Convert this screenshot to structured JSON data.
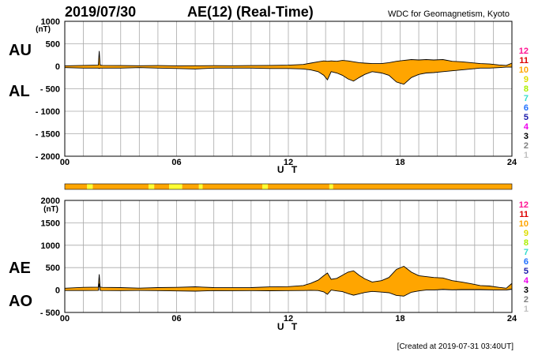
{
  "header": {
    "date": "2019/07/30",
    "title": "AE(12) (Real-Time)",
    "institution": "WDC for Geomagnetism, Kyoto"
  },
  "footer": {
    "created": "[Created at 2019-07-31 03:40UT]"
  },
  "colors": {
    "fill": "#ffa500",
    "line": "#000000",
    "grid": "#a8a8a8",
    "station_bar": "#ffa500",
    "station_bar_highlight": "#ffff33"
  },
  "legend": [
    {
      "label": "12",
      "color": "#ff1493"
    },
    {
      "label": "11",
      "color": "#dd0000"
    },
    {
      "label": "10",
      "color": "#ffa500"
    },
    {
      "label": "9",
      "color": "#dddd00"
    },
    {
      "label": "8",
      "color": "#aaee00"
    },
    {
      "label": "7",
      "color": "#33ddcc"
    },
    {
      "label": "6",
      "color": "#1e6fff"
    },
    {
      "label": "5",
      "color": "#1a1aaa"
    },
    {
      "label": "4",
      "color": "#ee00ee"
    },
    {
      "label": "3",
      "color": "#000000"
    },
    {
      "label": "2",
      "color": "#808080"
    },
    {
      "label": "1",
      "color": "#c0c0c0"
    }
  ],
  "chart_data": [
    {
      "type": "area",
      "name": "AU/AL",
      "label_top": "AU",
      "label_bottom": "AL",
      "ylabel": "(nT)",
      "xlabel": "U T",
      "ylim": [
        -2000,
        1000
      ],
      "yticks": [
        1000,
        500,
        0,
        -500,
        -1000,
        -1500,
        -2000
      ],
      "ytick_labels": [
        "1000",
        "500",
        "0",
        "- 500",
        "- 1000",
        "- 1500",
        "- 2000"
      ],
      "xlim": [
        0,
        24
      ],
      "xticks": [
        0,
        6,
        12,
        18,
        24
      ],
      "xtick_labels": [
        "00",
        "06",
        "12",
        "18",
        "24"
      ],
      "x": [
        0,
        1,
        1.8,
        1.85,
        1.9,
        2,
        3,
        4,
        5,
        6,
        7,
        8,
        9,
        10,
        11,
        12,
        12.8,
        13.2,
        13.6,
        13.9,
        14.1,
        14.3,
        14.6,
        14.9,
        15.2,
        15.5,
        15.8,
        16.1,
        16.5,
        17,
        17.4,
        17.8,
        18.2,
        18.6,
        19,
        19.4,
        19.8,
        20.3,
        20.8,
        21.3,
        21.8,
        22.3,
        22.8,
        23.3,
        23.7,
        24
      ],
      "series": [
        {
          "name": "AU",
          "values": [
            10,
            20,
            25,
            340,
            25,
            20,
            15,
            12,
            15,
            10,
            12,
            14,
            12,
            15,
            20,
            25,
            40,
            70,
            100,
            120,
            110,
            120,
            110,
            130,
            120,
            100,
            80,
            70,
            60,
            60,
            80,
            110,
            130,
            150,
            140,
            150,
            140,
            150,
            110,
            100,
            80,
            60,
            50,
            30,
            20,
            70
          ]
        },
        {
          "name": "AL",
          "values": [
            -30,
            -40,
            -40,
            -50,
            -40,
            -40,
            -40,
            -30,
            -40,
            -50,
            -60,
            -40,
            -40,
            -40,
            -50,
            -50,
            -60,
            -80,
            -120,
            -200,
            -300,
            -120,
            -150,
            -200,
            -280,
            -330,
            -250,
            -180,
            -120,
            -150,
            -200,
            -350,
            -400,
            -250,
            -180,
            -150,
            -140,
            -120,
            -100,
            -80,
            -60,
            -40,
            -40,
            -30,
            -20,
            -20
          ]
        }
      ]
    },
    {
      "type": "area",
      "name": "AE/AO",
      "label_top": "AE",
      "label_bottom": "AO",
      "ylabel": "(nT)",
      "xlabel": "U T",
      "ylim": [
        -500,
        2000
      ],
      "yticks": [
        2000,
        1500,
        1000,
        500,
        0,
        -500
      ],
      "ytick_labels": [
        "2000",
        "1500",
        "1000",
        "500",
        "0",
        "- 500"
      ],
      "xlim": [
        0,
        24
      ],
      "xticks": [
        0,
        6,
        12,
        18,
        24
      ],
      "xtick_labels": [
        "00",
        "06",
        "12",
        "18",
        "24"
      ],
      "x": [
        0,
        1,
        1.8,
        1.85,
        1.9,
        2,
        3,
        4,
        5,
        6,
        7,
        8,
        9,
        10,
        11,
        12,
        12.8,
        13.2,
        13.6,
        13.9,
        14.1,
        14.3,
        14.6,
        14.9,
        15.2,
        15.5,
        15.8,
        16.1,
        16.5,
        17,
        17.4,
        17.8,
        18.2,
        18.6,
        19,
        19.4,
        19.8,
        20.3,
        20.8,
        21.3,
        21.8,
        22.3,
        22.8,
        23.3,
        23.7,
        24
      ],
      "series": [
        {
          "name": "AE",
          "values": [
            40,
            60,
            65,
            350,
            65,
            60,
            55,
            42,
            55,
            60,
            72,
            54,
            52,
            55,
            70,
            75,
            100,
            150,
            220,
            320,
            380,
            240,
            260,
            330,
            400,
            430,
            330,
            250,
            180,
            210,
            280,
            460,
            530,
            400,
            320,
            300,
            280,
            270,
            210,
            180,
            140,
            100,
            90,
            60,
            40,
            150
          ]
        },
        {
          "name": "AO",
          "values": [
            -10,
            -10,
            -8,
            145,
            -8,
            -10,
            -12,
            -9,
            -12,
            -20,
            -24,
            -13,
            -14,
            -12,
            -15,
            -12,
            -10,
            -5,
            -10,
            -40,
            -95,
            0,
            -20,
            -35,
            -80,
            -115,
            -85,
            -55,
            -30,
            -45,
            -60,
            -120,
            -135,
            -50,
            -20,
            0,
            0,
            15,
            5,
            10,
            10,
            10,
            5,
            0,
            0,
            25
          ]
        }
      ]
    }
  ],
  "station_bar": {
    "segments": [
      [
        0,
        1.2,
        "#ffa500"
      ],
      [
        1.2,
        1.5,
        "#ffff33"
      ],
      [
        1.5,
        4.5,
        "#ffa500"
      ],
      [
        4.5,
        4.8,
        "#ffff33"
      ],
      [
        4.8,
        5.6,
        "#ffa500"
      ],
      [
        5.6,
        6.3,
        "#ffff33"
      ],
      [
        6.3,
        7.2,
        "#ffa500"
      ],
      [
        7.2,
        7.4,
        "#ffff33"
      ],
      [
        7.4,
        10.6,
        "#ffa500"
      ],
      [
        10.6,
        10.9,
        "#ffff33"
      ],
      [
        10.9,
        14.2,
        "#ffa500"
      ],
      [
        14.2,
        14.4,
        "#ffff33"
      ],
      [
        14.4,
        24,
        "#ffa500"
      ]
    ]
  }
}
